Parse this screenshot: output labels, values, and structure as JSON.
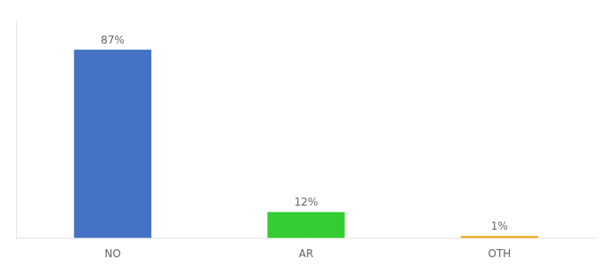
{
  "chart_data": {
    "type": "bar",
    "categories": [
      "NO",
      "AR",
      "OTH"
    ],
    "values": [
      87,
      12,
      1
    ],
    "value_labels": [
      "87%",
      "12%",
      "1%"
    ],
    "colors": [
      "#4472c4",
      "#33cc33",
      "#f0a500"
    ],
    "ylim": [
      0,
      100
    ],
    "grid": false,
    "data_labels": true,
    "tick_labels": "x"
  }
}
